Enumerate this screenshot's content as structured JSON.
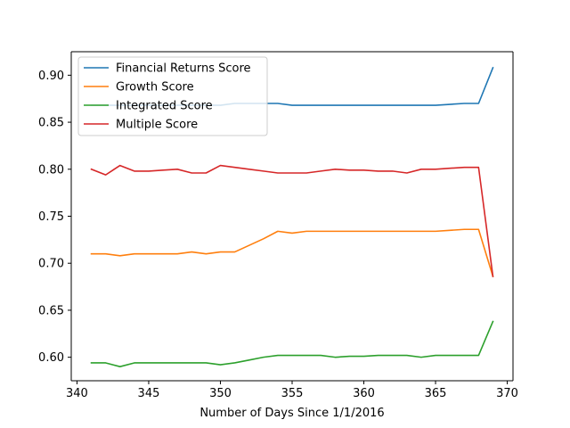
{
  "chart_data": {
    "type": "line",
    "title": "",
    "xlabel": "Number of Days Since 1/1/2016",
    "ylabel": "",
    "xlim": [
      339.6,
      370.4
    ],
    "ylim": [
      0.575,
      0.925
    ],
    "xticks": [
      340,
      345,
      350,
      355,
      360,
      365,
      370
    ],
    "yticks": [
      0.6,
      0.65,
      0.7,
      0.75,
      0.8,
      0.85,
      0.9
    ],
    "xtick_labels": [
      "340",
      "345",
      "350",
      "355",
      "360",
      "365",
      "370"
    ],
    "ytick_labels": [
      "0.60",
      "0.65",
      "0.70",
      "0.75",
      "0.80",
      "0.85",
      "0.90"
    ],
    "grid": false,
    "legend_position": "upper-left",
    "series": [
      {
        "name": "Financial Returns Score",
        "color": "#1f77b4",
        "x": [
          341,
          342,
          343,
          344,
          345,
          346,
          347,
          348,
          349,
          350,
          351,
          352,
          353,
          354,
          355,
          356,
          357,
          358,
          359,
          360,
          361,
          362,
          363,
          364,
          365,
          366,
          367,
          368,
          369
        ],
        "y": [
          0.868,
          0.868,
          0.868,
          0.868,
          0.868,
          0.868,
          0.868,
          0.868,
          0.868,
          0.868,
          0.87,
          0.87,
          0.87,
          0.87,
          0.868,
          0.868,
          0.868,
          0.868,
          0.868,
          0.868,
          0.868,
          0.868,
          0.868,
          0.868,
          0.868,
          0.869,
          0.87,
          0.87,
          0.908
        ]
      },
      {
        "name": "Growth Score",
        "color": "#ff7f0e",
        "x": [
          341,
          342,
          343,
          344,
          345,
          346,
          347,
          348,
          349,
          350,
          351,
          352,
          353,
          354,
          355,
          356,
          357,
          358,
          359,
          360,
          361,
          362,
          363,
          364,
          365,
          366,
          367,
          368,
          369
        ],
        "y": [
          0.71,
          0.71,
          0.708,
          0.71,
          0.71,
          0.71,
          0.71,
          0.712,
          0.71,
          0.712,
          0.712,
          0.719,
          0.726,
          0.734,
          0.732,
          0.734,
          0.734,
          0.734,
          0.734,
          0.734,
          0.734,
          0.734,
          0.734,
          0.734,
          0.734,
          0.735,
          0.736,
          0.736,
          0.686
        ]
      },
      {
        "name": "Integrated Score",
        "color": "#2ca02c",
        "x": [
          341,
          342,
          343,
          344,
          345,
          346,
          347,
          348,
          349,
          350,
          351,
          352,
          353,
          354,
          355,
          356,
          357,
          358,
          359,
          360,
          361,
          362,
          363,
          364,
          365,
          366,
          367,
          368,
          369
        ],
        "y": [
          0.594,
          0.594,
          0.59,
          0.594,
          0.594,
          0.594,
          0.594,
          0.594,
          0.594,
          0.592,
          0.594,
          0.597,
          0.6,
          0.602,
          0.602,
          0.602,
          0.602,
          0.6,
          0.601,
          0.601,
          0.602,
          0.602,
          0.602,
          0.6,
          0.602,
          0.602,
          0.602,
          0.602,
          0.638
        ]
      },
      {
        "name": "Multiple Score",
        "color": "#d62728",
        "x": [
          341,
          342,
          343,
          344,
          345,
          346,
          347,
          348,
          349,
          350,
          351,
          352,
          353,
          354,
          355,
          356,
          357,
          358,
          359,
          360,
          361,
          362,
          363,
          364,
          365,
          366,
          367,
          368,
          369
        ],
        "y": [
          0.8,
          0.794,
          0.804,
          0.798,
          0.798,
          0.799,
          0.8,
          0.796,
          0.796,
          0.804,
          0.802,
          0.8,
          0.798,
          0.796,
          0.796,
          0.796,
          0.798,
          0.8,
          0.799,
          0.799,
          0.798,
          0.798,
          0.796,
          0.8,
          0.8,
          0.801,
          0.802,
          0.802,
          0.686
        ]
      }
    ]
  }
}
